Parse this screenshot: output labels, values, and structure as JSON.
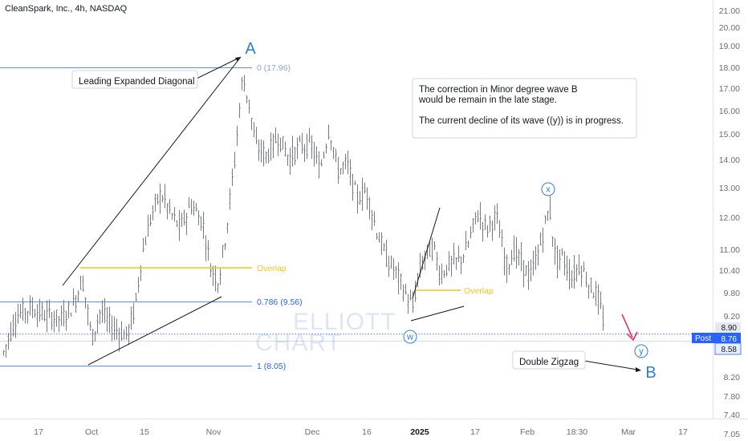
{
  "title": "CleanSpark, Inc., 4h, NASDAQ",
  "watermark": [
    "ELLIOTT",
    "CHART"
  ],
  "chart_data": {
    "type": "candlestick",
    "symbol": "CleanSpark, Inc.",
    "interval": "4h",
    "exchange": "NASDAQ",
    "y_scale": "log",
    "ylim": [
      6.9,
      21.3
    ],
    "y_ticks": [
      21.0,
      20.0,
      19.0,
      18.0,
      17.0,
      16.0,
      15.0,
      14.0,
      13.0,
      12.0,
      11.0,
      10.4,
      9.8,
      9.2,
      8.9,
      8.2,
      7.8,
      7.4,
      7.05
    ],
    "y_tick_labels": [
      "21.00",
      "20.00",
      "19.00",
      "18.00",
      "17.00",
      "16.00",
      "15.00",
      "14.00",
      "13.00",
      "12.00",
      "11.00",
      "10.40",
      "9.80",
      "9.20",
      "8.90",
      "8.20",
      "7.80",
      "7.40",
      "7.05"
    ],
    "x_ticks": [
      "17",
      "Oct",
      "15",
      "Nov",
      "Dec",
      "16",
      "2025",
      "17",
      "Feb",
      "18:30",
      "Mar",
      "17"
    ],
    "x_tick_bold": [
      "2025"
    ],
    "current_price": {
      "label": "Post",
      "value": "8.76"
    },
    "price_levels": [
      "8.90",
      "8.58"
    ],
    "fib_levels": [
      {
        "label": "0 (17.96)",
        "value": 17.96,
        "color": "#2962ff"
      },
      {
        "label": "0.786 (9.56)",
        "value": 9.56,
        "color": "#2962ff"
      },
      {
        "label": "1 (8.05)",
        "value": 8.05,
        "color": "#2962ff"
      }
    ],
    "overlap_label": "Overlap",
    "wave_labels": {
      "A": "A",
      "B": "B",
      "w": "w",
      "x": "x",
      "y": "y"
    },
    "annotations": {
      "leading_diagonal": "Leading Expanded Diagonal",
      "double_zigzag": "Double Zigzag",
      "note_lines": [
        "The correction in Minor degree wave B",
        " would be remain in the late stage.",
        "",
        "The current decline of its wave ((y)) is in progress."
      ]
    },
    "colors": {
      "candle": "#787b86",
      "fib": "#2962ff",
      "overlap": "#f5c518",
      "wave_label": "#2f7fd6",
      "projection_arrow": "#e91e63",
      "price_tag": "#2962ff"
    }
  }
}
